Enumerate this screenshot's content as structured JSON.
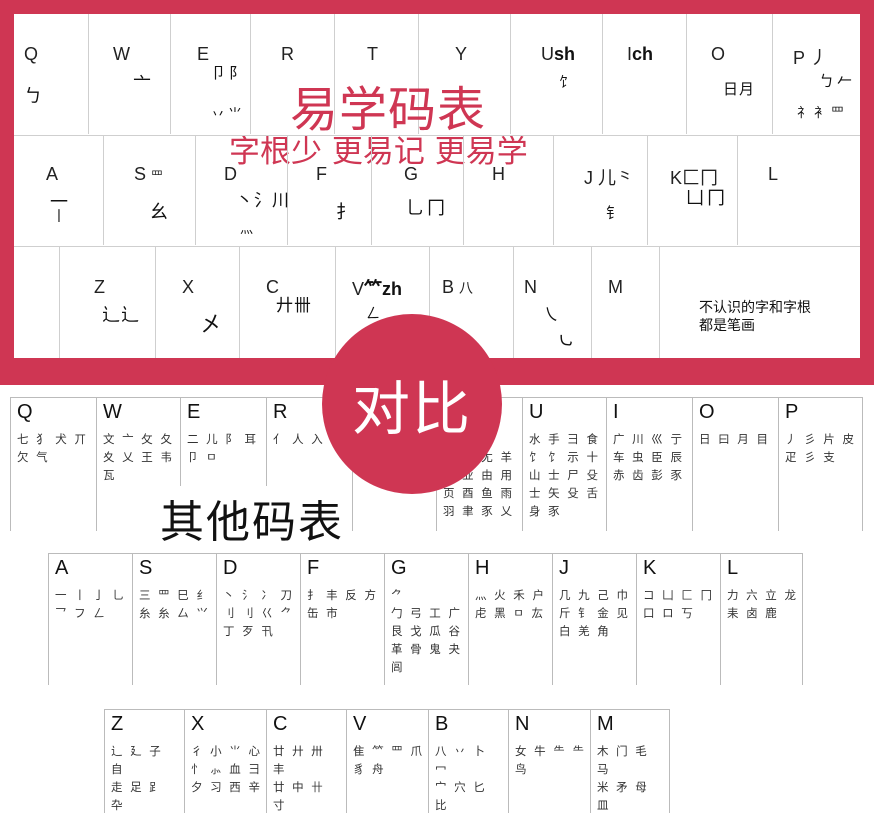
{
  "top": {
    "title": "易学码表",
    "subtitle": "字根少 更易记 更易学",
    "legend": "不认识的字和字根\n都是笔画",
    "rows": [
      [
        {
          "letter": "Q",
          "roots": [
            "ㄅ"
          ]
        },
        {
          "letter": "W",
          "roots": [
            "亠"
          ]
        },
        {
          "letter": "E",
          "roots": [
            "卩阝",
            "丷⺌"
          ]
        },
        {
          "letter": "R",
          "roots": []
        },
        {
          "letter": "T",
          "roots": []
        },
        {
          "letter": "Y",
          "roots": []
        },
        {
          "letter": "U",
          "label_bold": "sh",
          "roots": [
            "饣"
          ]
        },
        {
          "letter": "I",
          "label_bold": "ch",
          "roots": []
        },
        {
          "letter": "O",
          "roots": [
            "日月"
          ]
        },
        {
          "letter": "P",
          "roots": [
            "丿",
            "ㄅ𠂉",
            "礻衤罒"
          ]
        }
      ],
      [
        {
          "letter": "A",
          "roots": [
            "一",
            "丨"
          ]
        },
        {
          "letter": "S",
          "roots": [
            "罒",
            "幺"
          ]
        },
        {
          "letter": "D",
          "roots": [
            "丶氵川",
            "灬"
          ]
        },
        {
          "letter": "F",
          "roots": [
            "扌"
          ]
        },
        {
          "letter": "G",
          "roots": [
            "乚冂"
          ]
        },
        {
          "letter": "H",
          "roots": []
        },
        {
          "letter": "J",
          "roots": [
            "儿⺀",
            "钅"
          ]
        },
        {
          "letter": "K",
          "roots": [
            "匚冂",
            "凵冂"
          ]
        },
        {
          "letter": "L",
          "roots": []
        }
      ],
      [
        {
          "letter": "Z",
          "roots": [
            "辶辶"
          ]
        },
        {
          "letter": "X",
          "roots": [
            "㐅"
          ]
        },
        {
          "letter": "C",
          "roots": [
            "廾卌"
          ]
        },
        {
          "letter": "V",
          "label_bold": "⺮zh",
          "roots": [
            "ㄥ"
          ]
        },
        {
          "letter": "B",
          "roots": [
            "八"
          ]
        },
        {
          "letter": "N",
          "roots": [
            "㇏",
            "㇃"
          ]
        },
        {
          "letter": "M",
          "roots": []
        }
      ]
    ]
  },
  "badge": {
    "text": "对比"
  },
  "other": {
    "title": "其他码表",
    "rows": [
      [
        {
          "letter": "Q",
          "roots": "七 犭 犬 丌\n欠 气"
        },
        {
          "letter": "W",
          "roots": "文 亠 攵 夂\n夊 乂 王 韦\n瓦"
        },
        {
          "letter": "E",
          "roots": "二 儿 阝 耳\n卩 ㅁ"
        },
        {
          "letter": "R",
          "roots": "亻 人 入 ⺈"
        },
        {
          "letter": "T",
          "roots": ""
        },
        {
          "letter": "Y",
          "roots": "讠\n衣 礻 尢 羊\n牙 业 由 用\n页 酉 鱼 雨\n羽 聿 豕 乂"
        },
        {
          "letter": "U",
          "roots": "水 手 ⺕ 食\n饣 饣 示 十\n山 士 尸 殳\n士 矢 殳 舌\n身 豕"
        },
        {
          "letter": "I",
          "roots": "广 川 巛 亍\n车 虫 臣 辰\n赤 齿 彭 豕"
        },
        {
          "letter": "O",
          "roots": "日 曰 月 目"
        },
        {
          "letter": "P",
          "roots": "丿 彡 片 皮\n疋 彡 支"
        }
      ],
      [
        {
          "letter": "A",
          "roots": "一 丨 亅 乚\n乛 フ ㄥ"
        },
        {
          "letter": "S",
          "roots": "三 罒 巳 纟\n糸 糸 厶 ⺍"
        },
        {
          "letter": "D",
          "roots": "丶 氵 冫 刀\n刂 刂 巜 ⺈\n丁 歹 卂"
        },
        {
          "letter": "F",
          "roots": "扌 丰 反 方\n        缶 市"
        },
        {
          "letter": "G",
          "roots": "                  ⺈\n勹 弓 工 广\n艮 戈 瓜 谷\n革 骨 鬼 夬\n闾"
        },
        {
          "letter": "H",
          "roots": "灬 火 禾 户\n虍 黑 ㅁ 厷"
        },
        {
          "letter": "J",
          "roots": "几 九 己 巾\n斤 钅 金 见\n白 羌 角"
        },
        {
          "letter": "K",
          "roots": "コ 凵 匚 冂\n口 ロ 丂"
        },
        {
          "letter": "L",
          "roots": "力 六 立 龙\n耒 卤 鹿"
        }
      ],
      [
        {
          "letter": "Z",
          "roots": "辶 廴 子 自\n走 足 ⻊ 卆"
        },
        {
          "letter": "X",
          "roots": "彳 小 ⺌ 心\n忄 ⺗ 血 彐\n夕 习 西 辛"
        },
        {
          "letter": "C",
          "roots": "廿 廾 卅 丰\n廿 中 卄 寸"
        },
        {
          "letter": "V",
          "roots": "隹 ⺮ 罒 爪\n豸              舟"
        },
        {
          "letter": "B",
          "roots": "八 丷 卜 冖\n宀 穴 匕 比\n白 贝 疒 鼻"
        },
        {
          "letter": "N",
          "roots": "女 牛 ⺧ ⺧\n鸟"
        },
        {
          "letter": "M",
          "roots": "木 门 毛 马\n米 矛 母 皿\n龙 麻 丏"
        }
      ]
    ]
  }
}
